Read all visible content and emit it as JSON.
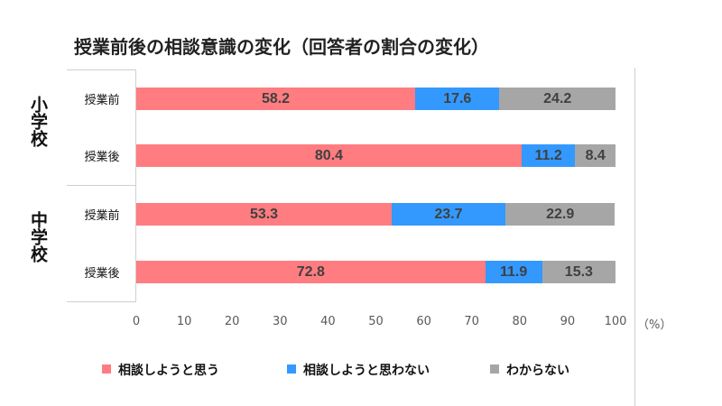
{
  "chart_data": {
    "type": "bar",
    "stacked": true,
    "orientation": "horizontal",
    "title": "授業前後の相談意識の変化（回答者の割合の変化）",
    "groups": [
      {
        "label": "小学校",
        "categories": [
          "授業前",
          "授業後"
        ]
      },
      {
        "label": "中学校",
        "categories": [
          "授業前",
          "授業後"
        ]
      }
    ],
    "categories": [
      "小学校 授業前",
      "小学校 授業後",
      "中学校 授業前",
      "中学校 授業後"
    ],
    "series": [
      {
        "name": "相談しようと思う",
        "color": "#FF7C80",
        "values": [
          58.2,
          80.4,
          53.3,
          72.8
        ]
      },
      {
        "name": "相談しようと思わない",
        "color": "#3399FF",
        "values": [
          17.6,
          11.2,
          23.7,
          11.9
        ]
      },
      {
        "name": "わからない",
        "color": "#A6A6A6",
        "values": [
          24.2,
          8.4,
          22.9,
          15.3
        ]
      }
    ],
    "xlim": [
      0,
      100
    ],
    "xticks": [
      "0",
      "10",
      "20",
      "30",
      "40",
      "50",
      "60",
      "70",
      "80",
      "90",
      "100"
    ],
    "xunit": "（%）",
    "legend": "bottom",
    "grid": false
  }
}
